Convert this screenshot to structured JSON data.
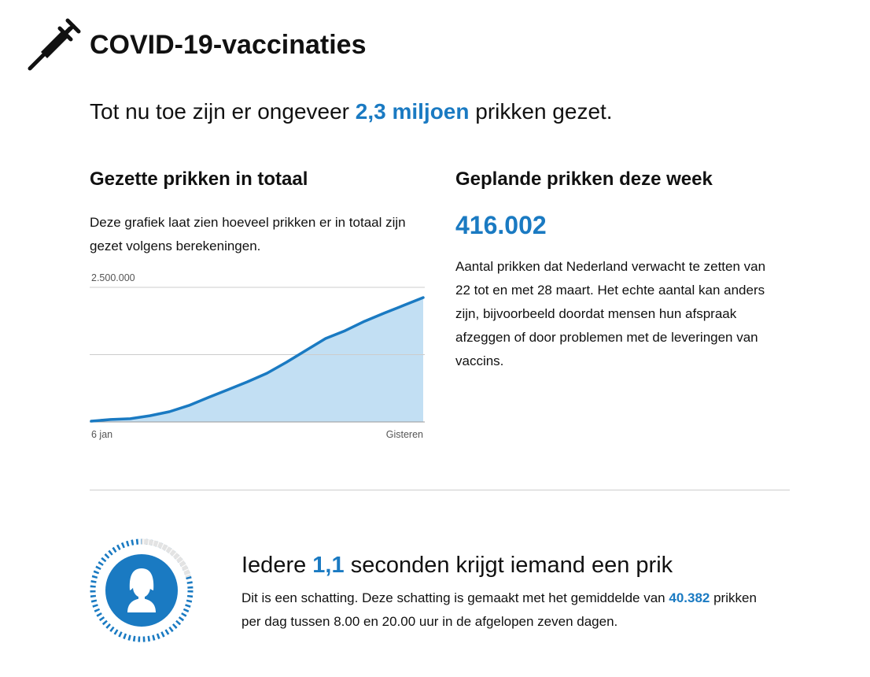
{
  "header": {
    "title": "COVID-19-vaccinaties"
  },
  "intro": {
    "before": "Tot nu toe zijn er ongeveer",
    "highlight": "2,3 miljoen",
    "after": "prikken gezet."
  },
  "total_section": {
    "heading": "Gezette prikken in totaal",
    "description": "Deze grafiek laat zien hoeveel prikken er in totaal zijn gezet volgens berekeningen."
  },
  "chart_data": {
    "type": "area",
    "categories": [
      "6 jan",
      null,
      null,
      null,
      null,
      null,
      null,
      null,
      null,
      null,
      null,
      null,
      null,
      null,
      null,
      null,
      null,
      "Gisteren"
    ],
    "values": [
      15000,
      45000,
      60000,
      115000,
      190000,
      305000,
      455000,
      600000,
      745000,
      905000,
      1110000,
      1330000,
      1550000,
      1695000,
      1870000,
      2020000,
      2165000,
      2310000
    ],
    "color": "#1a7ac2",
    "fill": "#c2dff3",
    "ylim": [
      0,
      2500000
    ],
    "yticks": [
      {
        "value": 2500000,
        "label": "2.500.000"
      }
    ],
    "gridlines": [
      0,
      1250000,
      2500000
    ]
  },
  "planned_section": {
    "heading": "Geplande prikken deze week",
    "number": "416.002",
    "description": "Aantal prikken dat Nederland verwacht te zetten van 22 tot en met 28 maart. Het echte aantal kan anders zijn, bijvoorbeeld doordat mensen hun afspraak afzeggen of door problemen met de leveringen van vaccins."
  },
  "rate_section": {
    "heading_before": "Iedere",
    "heading_highlight": "1,1",
    "heading_after": "seconden krijgt iemand een prik",
    "text_before": "Dit is een schatting. Deze schatting is gemaakt met het gemiddelde van",
    "text_highlight": "40.382",
    "text_after": "prikken per dag tussen 8.00 en 20.00 uur in de afgelopen zeven dagen."
  }
}
